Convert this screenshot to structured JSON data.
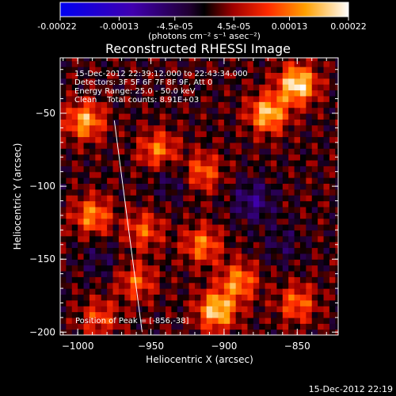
{
  "colorbar": {
    "tick_labels": [
      "-0.00022",
      "-0.00013",
      "-4.5e-05",
      "4.5e-05",
      "0.00013",
      "0.00022"
    ],
    "unit_label": "(photons cm⁻² s⁻¹ asec⁻²)",
    "range": [
      -0.00022,
      0.00022
    ]
  },
  "chart_data": {
    "type": "heatmap",
    "title": "Reconstructed RHESSI Image",
    "xlabel": "Heliocentric X (arcsec)",
    "ylabel": "Heliocentric Y (arcsec)",
    "xlim": [
      -1012,
      -822
    ],
    "ylim": [
      -202,
      -12
    ],
    "x_ticks": [
      -1000,
      -950,
      -900,
      -850
    ],
    "y_ticks": [
      -200,
      -150,
      -100,
      -50
    ],
    "annotations": [
      "15-Dec-2012 22:39:12.000 to 22:43:34.000",
      "Detectors: 3F 5F 6F 7F 8F 9F, Att 0",
      "Energy Range: 25.0 - 50.0 keV",
      "Clean    Total counts: 8.91E+03"
    ],
    "peak_label": "Position of Peak = [-856,-38]",
    "peak": [
      -856,
      -38
    ],
    "limb_line": {
      "x": [
        -975,
        -956
      ],
      "y": [
        -55,
        -200
      ]
    },
    "bright_regions": [
      {
        "x": -850,
        "y": -30,
        "value": 0.0002
      },
      {
        "x": -870,
        "y": -50,
        "value": 0.00017
      },
      {
        "x": -995,
        "y": -55,
        "value": 0.00015
      },
      {
        "x": -945,
        "y": -75,
        "value": 0.00012
      },
      {
        "x": -915,
        "y": -90,
        "value": 0.00011
      },
      {
        "x": -990,
        "y": -120,
        "value": 0.00013
      },
      {
        "x": -955,
        "y": -130,
        "value": 0.0001
      },
      {
        "x": -915,
        "y": -140,
        "value": 0.00012
      },
      {
        "x": -890,
        "y": -165,
        "value": 0.00013
      },
      {
        "x": -905,
        "y": -185,
        "value": 0.00018
      },
      {
        "x": -960,
        "y": -165,
        "value": 0.0001
      },
      {
        "x": -850,
        "y": -180,
        "value": 0.00011
      },
      {
        "x": -985,
        "y": -190,
        "value": 9e-05
      }
    ],
    "dark_regions": [
      {
        "x": -880,
        "y": -110,
        "value": -8e-05
      },
      {
        "x": -935,
        "y": -95,
        "value": -5e-05
      },
      {
        "x": -985,
        "y": -150,
        "value": -4e-05
      },
      {
        "x": -860,
        "y": -140,
        "value": -4e-05
      }
    ]
  },
  "footer": {
    "timestamp": "15-Dec-2012 22:19"
  }
}
